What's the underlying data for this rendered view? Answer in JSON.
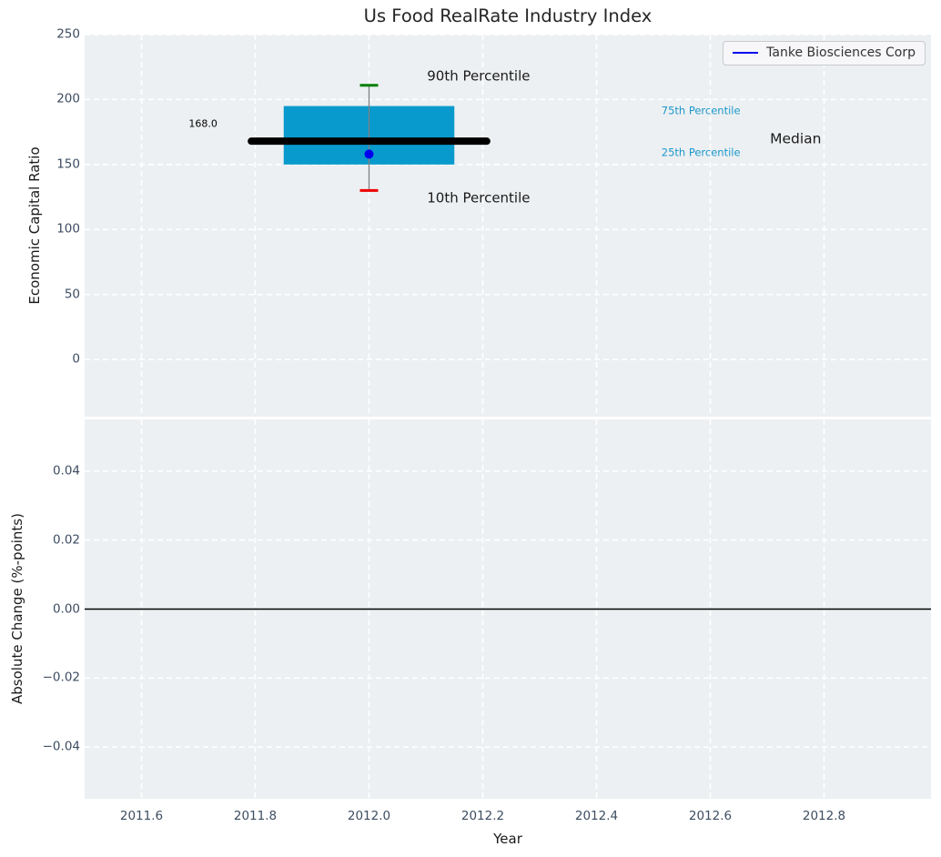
{
  "title": "Us Food RealRate Industry Index",
  "legend": {
    "label": "Tanke Biosciences Corp"
  },
  "colors": {
    "figure_bg": "#ffffff",
    "axes_bg": "#edf0f2",
    "grid": "#ffffff",
    "tick_label": "#3d4d61",
    "axis_label": "#1a1a1a",
    "title_color": "#262626",
    "legend_text": "#333333",
    "legend_border": "#c9cacd",
    "legend_line": "#0000ee",
    "box_fill": "#089acd",
    "median_line": "#000000",
    "whisker": "#808080",
    "cap_upper": "#008000",
    "cap_lower": "#ee0000",
    "marker_dot": "#0000ee",
    "percentile_label": "#1b98cb",
    "zero_line": "#000000"
  },
  "chart_data": [
    {
      "type": "box",
      "panel": "top",
      "title": "Us Food RealRate Industry Index",
      "ylabel": "Economic Capital Ratio",
      "xlim": [
        2011.5,
        2012.988
      ],
      "ylim": [
        -44,
        250
      ],
      "grid": true,
      "legend_position": "upper right",
      "yticks": [
        {
          "v": 0,
          "label": "0"
        },
        {
          "v": 50,
          "label": "50"
        },
        {
          "v": 100,
          "label": "100"
        },
        {
          "v": 150,
          "label": "150"
        },
        {
          "v": 200,
          "label": "200"
        },
        {
          "v": 250,
          "label": "250"
        }
      ],
      "series": [
        {
          "name": "Tanke Biosciences Corp",
          "x": 2012.0,
          "p10": 130,
          "p25": 150,
          "median": 168.0,
          "p75": 195,
          "p90": 211,
          "company_value": 158,
          "box_halfwidth": 0.15,
          "median_halfwidth": 0.207,
          "cap_halfwidth": 0.016
        }
      ],
      "annotations": [
        {
          "id": "90th-percentile",
          "text": "90th Percentile",
          "x": 2012.102,
          "y": 218,
          "size": 15,
          "color": "#1a1a1a"
        },
        {
          "id": "10th-percentile",
          "text": "10th Percentile",
          "x": 2012.102,
          "y": 124,
          "size": 15,
          "color": "#1a1a1a"
        },
        {
          "id": "median-value",
          "text": "168.0",
          "x": 2011.683,
          "y": 181.5,
          "size": 11,
          "color": "#000000"
        },
        {
          "id": "75th-percentile",
          "text": "75th Percentile",
          "x": 2012.514,
          "y": 191,
          "size": 11.5,
          "color": "#1b98cb"
        },
        {
          "id": "25th-percentile",
          "text": "25th Percentile",
          "x": 2012.514,
          "y": 159,
          "size": 11.5,
          "color": "#1b98cb"
        },
        {
          "id": "median-label",
          "text": "Median",
          "x": 2012.705,
          "y": 169.5,
          "size": 15.5,
          "color": "#1a1a1a"
        }
      ]
    },
    {
      "type": "line",
      "panel": "bottom",
      "ylabel": "Absolute Change (%-points)",
      "xlabel": "Year",
      "xlim": [
        2011.5,
        2012.988
      ],
      "ylim": [
        -0.055,
        0.055
      ],
      "grid": true,
      "zero_line_y": 0.0,
      "yticks": [
        {
          "v": -0.04,
          "label": "−0.04"
        },
        {
          "v": -0.02,
          "label": "−0.02"
        },
        {
          "v": 0.0,
          "label": "0.00"
        },
        {
          "v": 0.02,
          "label": "0.02"
        },
        {
          "v": 0.04,
          "label": "0.04"
        }
      ],
      "xticks": [
        {
          "v": 2011.6,
          "label": "2011.6"
        },
        {
          "v": 2011.8,
          "label": "2011.8"
        },
        {
          "v": 2012.0,
          "label": "2012.0"
        },
        {
          "v": 2012.2,
          "label": "2012.2"
        },
        {
          "v": 2012.4,
          "label": "2012.4"
        },
        {
          "v": 2012.6,
          "label": "2012.6"
        },
        {
          "v": 2012.8,
          "label": "2012.8"
        }
      ],
      "series": []
    }
  ]
}
